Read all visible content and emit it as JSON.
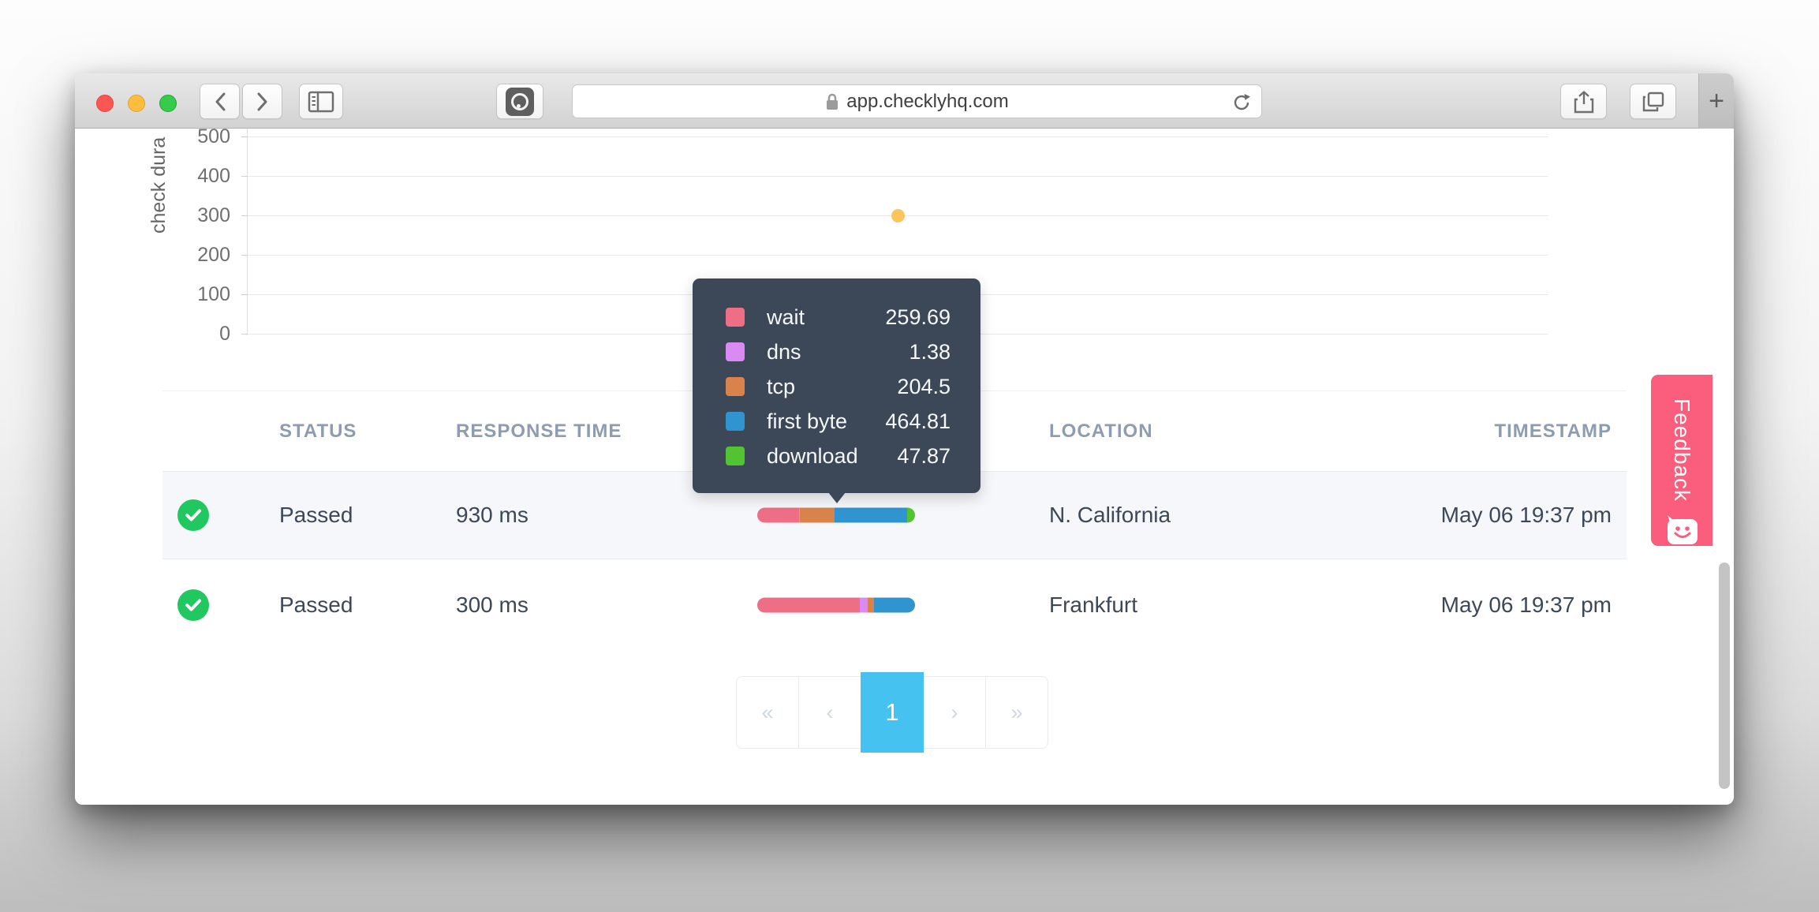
{
  "browser": {
    "url": "app.checklyhq.com",
    "new_tab_label": "+"
  },
  "chart_data": {
    "type": "scatter",
    "title": "",
    "xlabel": "",
    "ylabel": "check dura",
    "yticks": [
      0,
      100,
      200,
      300,
      400,
      500
    ],
    "ylim": [
      0,
      500
    ],
    "grid": true,
    "point_color": "#fbc55c",
    "points": [
      {
        "x_frac": 0.5,
        "y": 300
      }
    ]
  },
  "tooltip": {
    "rows": [
      {
        "label": "wait",
        "value": "259.69",
        "color": "#ed6e85"
      },
      {
        "label": "dns",
        "value": "1.38",
        "color": "#d98af3"
      },
      {
        "label": "tcp",
        "value": "204.5",
        "color": "#d9824c"
      },
      {
        "label": "first byte",
        "value": "464.81",
        "color": "#3094d1"
      },
      {
        "label": "download",
        "value": "47.87",
        "color": "#52c331"
      }
    ]
  },
  "table": {
    "headers": [
      "STATUS",
      "RESPONSE TIME",
      "LOCATION",
      "TIMESTAMP"
    ],
    "rows": [
      {
        "status": "Passed",
        "response_time": "930 ms",
        "location": "N. California",
        "timestamp": "May 06 19:37 pm",
        "highlighted": true,
        "bar": [
          {
            "color": "#ed6e85",
            "pct": 26.5
          },
          {
            "color": "#d98af3",
            "pct": 0.7
          },
          {
            "color": "#d9824c",
            "pct": 21.8
          },
          {
            "color": "#3094d1",
            "pct": 46.0
          },
          {
            "color": "#52c331",
            "pct": 5.0
          }
        ]
      },
      {
        "status": "Passed",
        "response_time": "300 ms",
        "location": "Frankfurt",
        "timestamp": "May 06 19:37 pm",
        "highlighted": false,
        "bar": [
          {
            "color": "#ed6e85",
            "pct": 65.0
          },
          {
            "color": "#d98af3",
            "pct": 5.0
          },
          {
            "color": "#d9824c",
            "pct": 4.0
          },
          {
            "color": "#3094d1",
            "pct": 26.0
          }
        ]
      }
    ]
  },
  "pagination": {
    "items": [
      {
        "label": "«",
        "name": "first-page-button",
        "active": false
      },
      {
        "label": "‹",
        "name": "prev-page-button",
        "active": false
      },
      {
        "label": "1",
        "name": "page-1-button",
        "active": true
      },
      {
        "label": "›",
        "name": "next-page-button",
        "active": false
      },
      {
        "label": "»",
        "name": "last-page-button",
        "active": false
      }
    ]
  },
  "feedback": {
    "label": "Feedback"
  }
}
